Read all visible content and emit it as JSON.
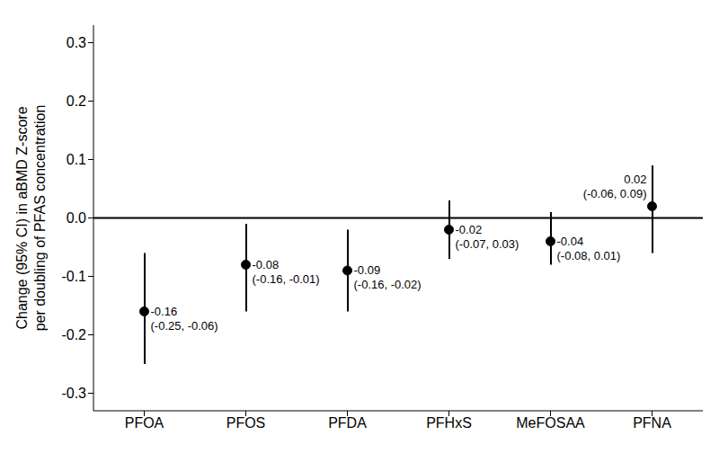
{
  "chart_data": {
    "type": "forest",
    "ylabel": "Change (95% CI) in aBMD Z-score\nper doubling of PFAS concentration",
    "categories": [
      "PFOA",
      "PFOS",
      "PFDA",
      "PFHxS",
      "MeFOSAA",
      "PFNA"
    ],
    "values": [
      -0.16,
      -0.08,
      -0.09,
      -0.02,
      -0.04,
      0.02
    ],
    "ci_lower": [
      -0.25,
      -0.16,
      -0.16,
      -0.07,
      -0.08,
      -0.06
    ],
    "ci_upper": [
      -0.06,
      -0.01,
      -0.02,
      0.03,
      0.01,
      0.09
    ],
    "ci_labels": [
      "(-0.25, -0.06)",
      "(-0.16, -0.01)",
      "(-0.16, -0.02)",
      "(-0.07, 0.03)",
      "(-0.08, 0.01)",
      "(-0.06, 0.09)"
    ],
    "color": "#000000",
    "ylim": [
      -0.33,
      0.33
    ],
    "yticks": [
      -0.3,
      -0.2,
      -0.1,
      {
        "value": 0,
        "label": "0.0"
      },
      0.1,
      0.2,
      0.3
    ],
    "data_labels": true,
    "grid": false
  }
}
